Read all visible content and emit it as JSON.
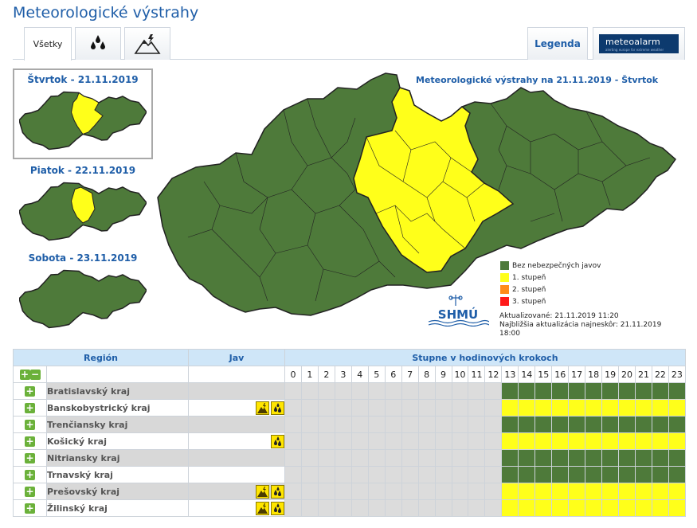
{
  "title": "Meteorologické výstrahy",
  "tabs": {
    "all_label": "Všetky",
    "rain_icon": "raindrops-icon",
    "storm_icon": "mountain-lightning-icon",
    "legend_label": "Legenda",
    "meteoalarm_label": "meteoalarm",
    "meteoalarm_tagline": "alerting europe for extreme weather"
  },
  "days": [
    {
      "label": "Štvrtok - 21.11.2019",
      "selected": true
    },
    {
      "label": "Piatok - 22.11.2019",
      "selected": false
    },
    {
      "label": "Sobota - 23.11.2019",
      "selected": false
    }
  ],
  "map": {
    "title": "Meteorologické výstrahy na 21.11.2019 - Štvrtok",
    "colors": {
      "green": "#4e7a3a",
      "yellow": "#ffff1a",
      "orange": "#ff8c1a",
      "red": "#ff1a1a",
      "border": "#222222"
    }
  },
  "legend": [
    {
      "label": "Bez nebezpečných javov",
      "color": "#4e7a3a"
    },
    {
      "label": "1. stupeň",
      "color": "#ffff1a"
    },
    {
      "label": "2. stupeň",
      "color": "#ff8c1a"
    },
    {
      "label": "3. stupeň",
      "color": "#ff1a1a"
    }
  ],
  "logo": "SHMÚ",
  "updated": {
    "line1": "Aktualizované: 21.11.2019 11:20",
    "line2": "Najbližšia aktualizácia najneskôr: 21.11.2019 18:00"
  },
  "table": {
    "col_region": "Región",
    "col_jav": "Jav",
    "col_hours": "Stupne v hodinových krokoch",
    "hours": [
      "0",
      "1",
      "2",
      "3",
      "4",
      "5",
      "6",
      "7",
      "8",
      "9",
      "10",
      "11",
      "12",
      "13",
      "14",
      "15",
      "16",
      "17",
      "18",
      "19",
      "20",
      "21",
      "22",
      "23"
    ],
    "rows": [
      {
        "region": "Bratislavský kraj",
        "icons": [],
        "level": "green"
      },
      {
        "region": "Banskobystrický kraj",
        "icons": [
          "storm-warning-icon",
          "rain-warning-icon"
        ],
        "level": "yellow"
      },
      {
        "region": "Trenčiansky kraj",
        "icons": [],
        "level": "green"
      },
      {
        "region": "Košický kraj",
        "icons": [
          "rain-warning-icon"
        ],
        "level": "yellow"
      },
      {
        "region": "Nitriansky kraj",
        "icons": [],
        "level": "green"
      },
      {
        "region": "Trnavský kraj",
        "icons": [],
        "level": "green"
      },
      {
        "region": "Prešovský kraj",
        "icons": [
          "storm-warning-icon",
          "rain-warning-icon"
        ],
        "level": "yellow"
      },
      {
        "region": "Žilinský kraj",
        "icons": [
          "storm-warning-icon",
          "rain-warning-icon"
        ],
        "level": "yellow"
      }
    ]
  }
}
